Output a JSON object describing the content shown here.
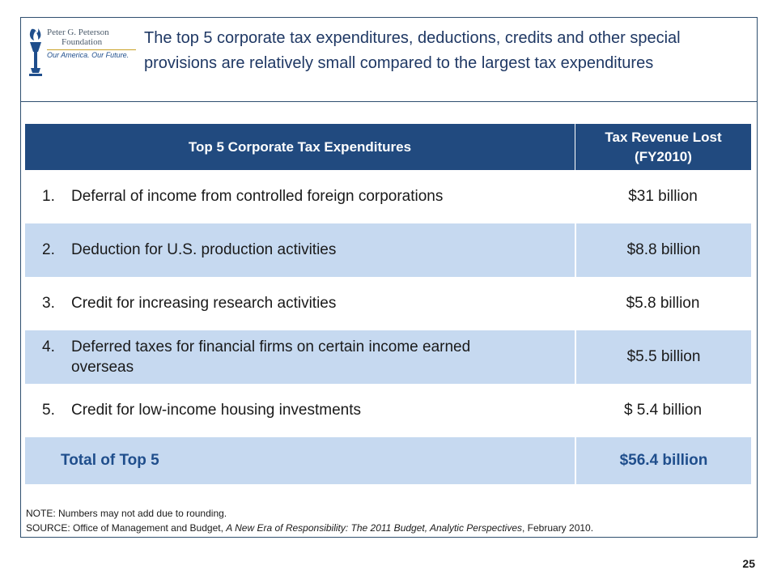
{
  "logo": {
    "line1": "Peter G. Peterson",
    "line2": "Foundation",
    "tagline": "Our America. Our Future."
  },
  "title": "The top 5 corporate tax expenditures, deductions, credits and other special provisions are relatively small compared to the largest tax expenditures",
  "table": {
    "header_col1": "Top 5 Corporate Tax Expenditures",
    "header_col2_line1": "Tax Revenue Lost",
    "header_col2_line2": "(FY2010)",
    "rows": [
      {
        "num": "1.",
        "label": "Deferral of income from controlled foreign corporations",
        "value": "$31 billion"
      },
      {
        "num": "2.",
        "label": "Deduction for U.S. production activities",
        "value": "$8.8 billion"
      },
      {
        "num": "3.",
        "label": "Credit for increasing research activities",
        "value": "$5.8 billion"
      },
      {
        "num": "4.",
        "label_line1": "Deferred taxes for financial firms on certain income earned",
        "label_line2": "overseas",
        "value": "$5.5 billion"
      },
      {
        "num": "5.",
        "label": "Credit for low-income housing investments",
        "value": "$ 5.4 billion"
      }
    ],
    "total_label": "Total of Top 5",
    "total_value": "$56.4 billion"
  },
  "note": {
    "line1": "NOTE: Numbers may not add due to rounding.",
    "source_prefix": "SOURCE: Office of Management and Budget, ",
    "source_italic": "A New Era of Responsibility: The 2011 Budget, Analytic Perspectives",
    "source_suffix": ", February 2010."
  },
  "page_number": "25",
  "colors": {
    "header_bg": "#214a7f",
    "row_blue": "#c6d9f0",
    "title_color": "#1f3864",
    "total_color": "#1f4e8c"
  }
}
